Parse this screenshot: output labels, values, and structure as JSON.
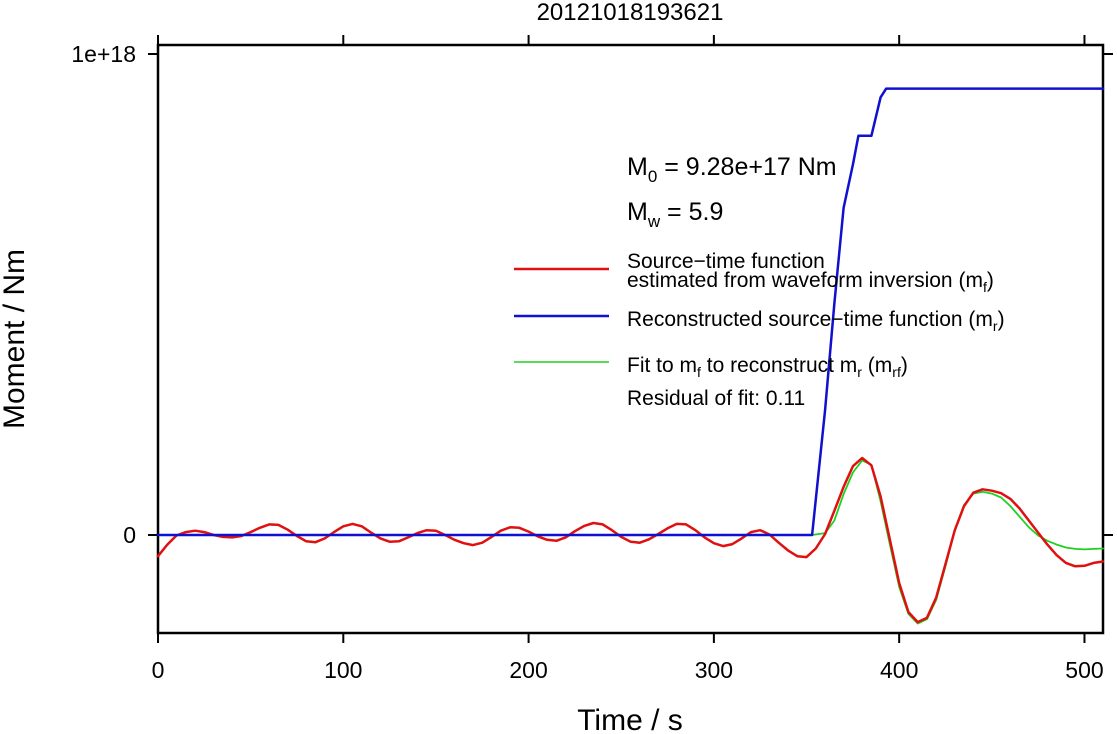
{
  "chart_data": {
    "type": "line",
    "title": "20121018193621",
    "xlabel": "Time / s",
    "ylabel": "Moment / Nm",
    "xlim": [
      0,
      510
    ],
    "ylim": [
      -1.8e+17,
      1e+18
    ],
    "x_ticks": [
      0,
      100,
      200,
      300,
      400,
      500
    ],
    "x_tick_labels": [
      "0",
      "100",
      "200",
      "300",
      "400",
      "500"
    ],
    "y_ticks": [
      0,
      1e+18
    ],
    "y_tick_labels": [
      "0",
      "1e+18"
    ],
    "grid": false,
    "legend_position": "right",
    "annotations": {
      "m0": {
        "main": "M",
        "sub": "0",
        "rest": " = 9.28e+17 Nm"
      },
      "mw": {
        "main": "M",
        "sub": "w",
        "rest": " = 5.9"
      },
      "residual": "Residual of fit: 0.11"
    },
    "legend": [
      {
        "line1": "Source−time function",
        "line2": "estimated from waveform inversion (m",
        "sub": "f",
        "close": ")",
        "color": "#e01010"
      },
      {
        "line1": "Reconstructed source−time function (m",
        "sub": "r",
        "close": ")",
        "color": "#1010d0"
      },
      {
        "line1a": "Fit to m",
        "sub1": "f",
        "line1b": " to reconstruct m",
        "sub2": "r",
        "line1c": " (m",
        "sub3": "rf",
        "close": ")",
        "color": "#20d020"
      }
    ],
    "series": [
      {
        "key": "mf",
        "color": "#e01010",
        "x": [
          0,
          5,
          10,
          15,
          20,
          25,
          30,
          35,
          40,
          45,
          50,
          55,
          60,
          65,
          70,
          75,
          80,
          85,
          90,
          95,
          100,
          105,
          110,
          115,
          120,
          125,
          130,
          135,
          140,
          145,
          150,
          155,
          160,
          165,
          170,
          175,
          180,
          185,
          190,
          195,
          200,
          205,
          210,
          215,
          220,
          225,
          230,
          235,
          240,
          245,
          250,
          255,
          260,
          265,
          270,
          275,
          280,
          285,
          290,
          295,
          300,
          305,
          310,
          315,
          320,
          325,
          330,
          335,
          340,
          345,
          350,
          355,
          360,
          365,
          370,
          375,
          380,
          385,
          390,
          395,
          400,
          405,
          410,
          415,
          420,
          425,
          430,
          435,
          440,
          445,
          450,
          455,
          460,
          465,
          470,
          475,
          480,
          485,
          490,
          495,
          500,
          505,
          510
        ],
        "y": [
          -4.4e+16,
          -2e+16,
          -1000000000000000.0,
          6000000000000000.0,
          9000000000000000.0,
          6000000000000000.0,
          0,
          -4000000000000000.0,
          -5000000000000000.0,
          -2000000000000000.0,
          6000000000000000.0,
          1.5e+16,
          2.2e+16,
          2.1e+16,
          1.1e+16,
          -2000000000000000.0,
          -1.3e+16,
          -1.5e+16,
          -7000000000000000.0,
          6000000000000000.0,
          1.8e+16,
          2.3e+16,
          1.8e+16,
          5000000000000000.0,
          -7000000000000000.0,
          -1.4e+16,
          -1.3e+16,
          -5000000000000000.0,
          4000000000000000.0,
          1e+16,
          9000000000000000.0,
          0,
          -1e+16,
          -1.7e+16,
          -2.1e+16,
          -1.6e+16,
          -4000000000000000.0,
          9000000000000000.0,
          1.6e+16,
          1.5e+16,
          7000000000000000.0,
          -3000000000000000.0,
          -1e+16,
          -1.2e+16,
          -5000000000000000.0,
          8000000000000000.0,
          1.9e+16,
          2.5e+16,
          2.2e+16,
          1e+16,
          -4000000000000000.0,
          -1.4e+16,
          -1.6e+16,
          -9000000000000000.0,
          2000000000000000.0,
          1.4e+16,
          2.3e+16,
          2.2e+16,
          1e+16,
          -5000000000000000.0,
          -1.7e+16,
          -2.3e+16,
          -1.9e+16,
          -7000000000000000.0,
          6000000000000000.0,
          1e+16,
          1000000000000000.0,
          -1.6e+16,
          -3.2e+16,
          -4.4e+16,
          -4.6e+16,
          -2.8e+16,
          2000000000000000.0,
          5e+16,
          1e+17,
          1.43e+17,
          1.6e+17,
          1.45e+17,
          8e+16,
          -1e+16,
          -1e+17,
          -1.6e+17,
          -1.81e+17,
          -1.72e+17,
          -1.3e+17,
          -6e+16,
          1e+16,
          6e+16,
          8.8e+16,
          9.5e+16,
          9.2e+16,
          8.7e+16,
          7.5e+16,
          5.5e+16,
          3e+16,
          5000000000000000.0,
          -2e+16,
          -4.2e+16,
          -5.8e+16,
          -6.5e+16,
          -6.4e+16,
          -5.8e+16,
          -5.5e+16
        ]
      },
      {
        "key": "mr",
        "color": "#1010d0",
        "x": [
          0,
          353,
          360,
          365,
          370,
          375,
          378,
          385,
          390,
          393,
          510
        ],
        "y": [
          0,
          0,
          2.6e+17,
          4.8e+17,
          6.8e+17,
          7.7e+17,
          8.3e+17,
          8.3e+17,
          9.1e+17,
          9.28e+17,
          9.28e+17
        ]
      },
      {
        "key": "mrf",
        "color": "#20d020",
        "x": [
          353,
          360,
          365,
          370,
          375,
          380,
          385,
          390,
          395,
          400,
          405,
          410,
          415,
          420,
          425,
          430,
          435,
          440,
          445,
          450,
          455,
          460,
          465,
          470,
          475,
          480,
          485,
          490,
          495,
          500,
          505,
          510
        ],
        "y": [
          0,
          4000000000000000.0,
          3e+16,
          8.5e+16,
          1.3e+17,
          1.55e+17,
          1.46e+17,
          7e+16,
          -2e+16,
          -1.08e+17,
          -1.64e+17,
          -1.84e+17,
          -1.75e+17,
          -1.35e+17,
          -6.5e+16,
          1e+16,
          6.2e+16,
          8.6e+16,
          9e+16,
          8.6e+16,
          7.8e+16,
          6e+16,
          3.8e+16,
          1.6e+16,
          -1000000000000000.0,
          -1.2e+16,
          -2e+16,
          -2.6e+16,
          -2.9e+16,
          -3e+16,
          -2.9e+16,
          -2.8e+16
        ]
      }
    ]
  }
}
